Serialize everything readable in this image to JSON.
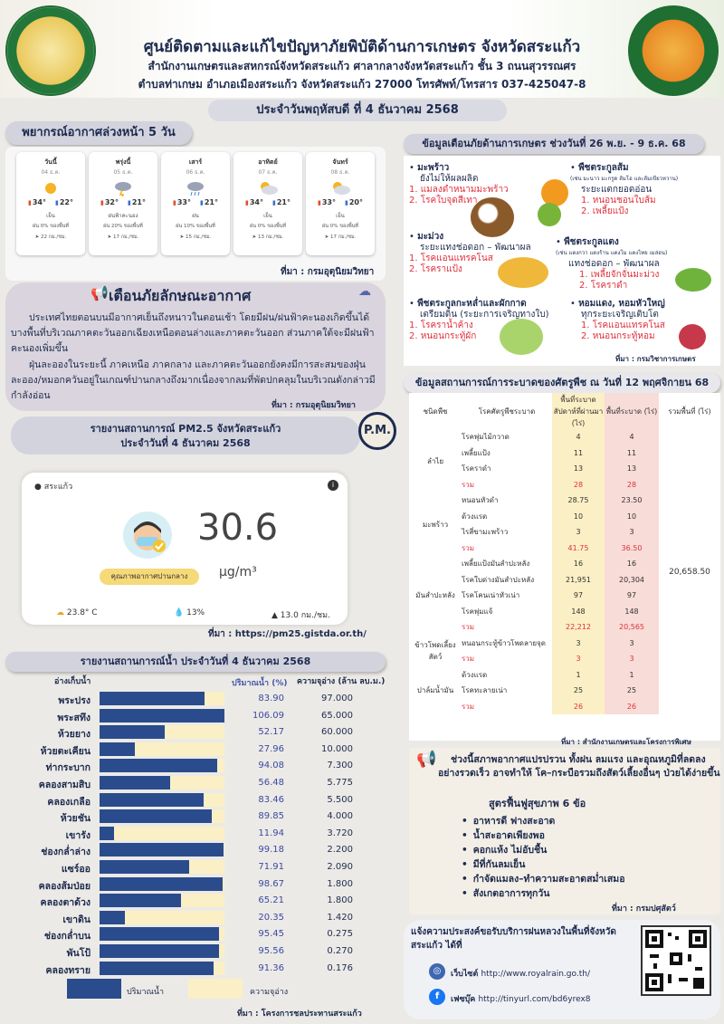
{
  "header": {
    "title": "ศูนย์ติดตามและแก้ไขปัญหาภัยพิบัติด้านการเกษตร จังหวัดสระแก้ว",
    "line2": "สำนักงานเกษตรและสหกรณ์จังหวัดสระแก้ว ศาลากลางจังหวัดสระแก้ว ชั้น 3 ถนนสุวรรณศร",
    "line3": "ตำบลท่าเกษม อำเภอเมืองสระแก้ว จังหวัดสระแก้ว 27000 โทรศัพท์/โทรสาร 037-425047-8",
    "date": "ประจำวันพฤหัสบดี ที่ 4 ธันวาคม 2568"
  },
  "forecast": {
    "title": "พยากรณ์อากาศล่วงหน้า 5 วัน",
    "source": "ที่มา : กรมอุตุนิยมวิทยา",
    "days": [
      {
        "day": "วันนี้",
        "date": "04 ธ.ค.",
        "icon": "sun-icon",
        "hi": "34°",
        "lo": "22°",
        "desc": "เย็น",
        "rain": "ฝน 0% ของพื้นที่",
        "wind": "22 กม./ชม."
      },
      {
        "day": "พรุ่งนี้",
        "date": "05 ธ.ค.",
        "icon": "thunderstorm-icon",
        "hi": "32°",
        "lo": "21°",
        "desc": "ฝนฟ้าคะนอง",
        "rain": "ฝน 20% ของพื้นที่",
        "wind": "17 กม./ชม."
      },
      {
        "day": "เสาร์",
        "date": "06 ธ.ค.",
        "icon": "rain-icon",
        "hi": "33°",
        "lo": "21°",
        "desc": "ฝน",
        "rain": "ฝน 10% ของพื้นที่",
        "wind": "15 กม./ชม."
      },
      {
        "day": "อาทิตย์",
        "date": "07 ธ.ค.",
        "icon": "partly-cloudy-icon",
        "hi": "34°",
        "lo": "21°",
        "desc": "เย็น",
        "rain": "ฝน 0% ของพื้นที่",
        "wind": "13 กม./ชม."
      },
      {
        "day": "จันทร์",
        "date": "08 ธ.ค.",
        "icon": "partly-cloudy-icon",
        "hi": "33°",
        "lo": "20°",
        "desc": "เย็น",
        "rain": "ฝน 0% ของพื้นที่",
        "wind": "17 กม./ชม."
      }
    ]
  },
  "warning": {
    "title": "เตือนภัยลักษณะอากาศ",
    "p1": "ประเทศไทยตอนบนมีอากาศเย็นถึงหนาวในตอนเช้า โดยมีฝน/ฝนฟ้าคะนองเกิดขึ้นได้บางพื้นที่บริเวณภาคตะวันออกเฉียงเหนือตอนล่างและภาคตะวันออก ส่วนภาคใต้จะมีฝนฟ้าคะนองเพิ่มขึ้น",
    "p2": "ฝุ่นละอองในระยะนี้ ภาคเหนือ ภาคกลาง และภาคตะวันออกยังคงมีการสะสมของฝุ่นละออง/หมอกควันอยู่ในเกณฑ์ปานกลางถึงมากเนื่องจากลมที่พัดปกคลุมในบริเวณดังกล่าวมีกำลังอ่อน",
    "source": "ที่มา : กรมอุตุนิยมวิทยา"
  },
  "pm": {
    "title1": "รายงานสถานการณ์ PM2.5 จังหวัดสระแก้ว",
    "title2": "ประจำวันที่ 4 ธันวาคม 2568",
    "badge": "P.M.",
    "location": "สระแก้ว",
    "value": "30.6",
    "unit": "µg/m³",
    "quality": "คุณภาพอากาศปานกลาง",
    "temp": "23.8° C",
    "humidity": "13%",
    "wind": "13.0 กม./ชม.",
    "source": "ที่มา : https://pm25.gistda.or.th/"
  },
  "water": {
    "title": "รายงานสถานการณ์น้ำ ประจำวันที่ 4 ธันวาคม 2568",
    "col_name": "อ่างเก็บน้ำ",
    "col_pct": "ปริมาณน้ำ (%)",
    "col_cap": "ความจุอ่าง (ล้าน ลบ.ม.)",
    "legend_water": "ปริมาณน้ำ",
    "legend_cap": "ความจุอ่าง",
    "source": "ที่มา : โครงการชลประทานสระแก้ว",
    "colors": {
      "water": "#2a4c8c",
      "capacity": "#fbefc5"
    },
    "rows": [
      {
        "name": "พระปรง",
        "pct": "83.90",
        "cap": "97.000",
        "v": 83.9
      },
      {
        "name": "พระสทึง",
        "pct": "106.09",
        "cap": "65.000",
        "v": 106.09
      },
      {
        "name": "ห้วยยาง",
        "pct": "52.17",
        "cap": "60.000",
        "v": 52.17
      },
      {
        "name": "ห้วยตะเคียน",
        "pct": "27.96",
        "cap": "10.000",
        "v": 27.96
      },
      {
        "name": "ท่ากระบาก",
        "pct": "94.08",
        "cap": "7.300",
        "v": 94.08
      },
      {
        "name": "คลองสามสิบ",
        "pct": "56.48",
        "cap": "5.775",
        "v": 56.48
      },
      {
        "name": "คลองเกลือ",
        "pct": "83.46",
        "cap": "5.500",
        "v": 83.46
      },
      {
        "name": "ห้วยชัน",
        "pct": "89.85",
        "cap": "4.000",
        "v": 89.85
      },
      {
        "name": "เขารัง",
        "pct": "11.94",
        "cap": "3.720",
        "v": 11.94
      },
      {
        "name": "ช่องกล่ำล่าง",
        "pct": "99.18",
        "cap": "2.200",
        "v": 99.18
      },
      {
        "name": "แซร์ออ",
        "pct": "71.91",
        "cap": "2.090",
        "v": 71.91
      },
      {
        "name": "คลองส้มป่อย",
        "pct": "98.67",
        "cap": "1.800",
        "v": 98.67
      },
      {
        "name": "คลองตาด้วง",
        "pct": "65.21",
        "cap": "1.800",
        "v": 65.21
      },
      {
        "name": "เขาดิน",
        "pct": "20.35",
        "cap": "1.420",
        "v": 20.35
      },
      {
        "name": "ช่องกล่ำบน",
        "pct": "95.45",
        "cap": "0.275",
        "v": 95.45
      },
      {
        "name": "พันโป้",
        "pct": "95.56",
        "cap": "0.270",
        "v": 95.56
      },
      {
        "name": "คลองทราย",
        "pct": "91.36",
        "cap": "0.176",
        "v": 91.36
      }
    ]
  },
  "alert": {
    "title": "ข้อมูลเตือนภัยด้านการเกษตร ช่วงวันที่ 26 พ.ย. - 9 ธ.ค. 68",
    "source": "ที่มา : กรมวิชาการเกษตร",
    "items": {
      "coconut": {
        "crop": "มะพร้าว",
        "stage": "ยังไม่ให้ผลผลิต",
        "r1": "1. แมลงดำหนามมะพร้าว",
        "r2": "2. โรคใบจุดสีเทา"
      },
      "citrus": {
        "crop": "พืชตระกูลส้ม",
        "note": "(เช่น มะนาว มะกรูด ส้มโอ และส้มเขียวหวาน)",
        "stage": "ระยะแตกยอดอ่อน",
        "r1": "1. หนอนชอนใบส้ม",
        "r2": "2. เพลี้ยแป้ง"
      },
      "mango": {
        "crop": "มะม่วง",
        "stage": "ระยะแทงช่อดอก – พัฒนาผล",
        "r1": "1. โรคแอนแทรคโนส",
        "r2": "2. โรคราแป้ง"
      },
      "cucurbit": {
        "crop": "พืชตระกูลแตง",
        "note": "(เช่น แตงกวา แตงร้าน แตงโม แตงไทย เมล่อน)",
        "stage": "แทงช่อดอก – พัฒนาผล",
        "r1": "1. เพลี้ยจักจั่นมะม่วง",
        "r2": "2. โรคราดำ"
      },
      "cabbage": {
        "crop": "พืชตระกูลกะหล่ำและผักกาด",
        "stage": "เตรียมดิน (ระยะการเจริญทางใบ)",
        "r1": "1. โรคราน้ำค้าง",
        "r2": "2. หนอนกระทู้ผัก"
      },
      "onion": {
        "crop": "หอมแดง, หอมหัวใหญ่",
        "stage": "ทุกระยะเจริญเติบโต",
        "r1": "1. โรคแอนแทรคโนส",
        "r2": "2. หนอนกระทู้หอม"
      }
    }
  },
  "pest": {
    "title": "ข้อมูลสถานการณ์การระบาดของศัตรูพืช ณ วันที่ 12 พฤศจิกายน 68",
    "h_crop": "ชนิดพืช",
    "h_pest": "โรคศัตรูพืชระบาด",
    "h_area_total": "พื้นที่ระบาดสัปดาห์ที่ผ่านมา (ไร่)",
    "h_area": "พื้นที่ระบาด (ไร่)",
    "h_total": "รวมพื้นที่ (ไร่)",
    "grand_total": "20,658.50",
    "source": "ที่มา : สำนักงานเกษตรและโครงการพิเศษ",
    "groups": [
      {
        "crop": "ลำไย",
        "rows": [
          [
            "โรคพุ่มไม้กวาด",
            "4",
            "4"
          ],
          [
            "เพลี้ยแป้ง",
            "11",
            "11"
          ],
          [
            "โรคราดำ",
            "13",
            "13"
          ],
          [
            "รวม",
            "28",
            "28"
          ]
        ]
      },
      {
        "crop": "มะพร้าว",
        "rows": [
          [
            "หนอนหัวดำ",
            "28.75",
            "23.50"
          ],
          [
            "ด้วงแรด",
            "10",
            "10"
          ],
          [
            "ไรสี่ขามะพร้าว",
            "3",
            "3"
          ],
          [
            "รวม",
            "41.75",
            "36.50"
          ]
        ]
      },
      {
        "crop": "มันสำปะหลัง",
        "rows": [
          [
            "เพลี้ยแป้งมันสำปะหลัง",
            "16",
            "16"
          ],
          [
            "โรคใบด่างมันสำปะหลัง",
            "21,951",
            "20,304"
          ],
          [
            "โรคโคนเน่าหัวเน่า",
            "97",
            "97"
          ],
          [
            "โรคพุ่มแจ้",
            "148",
            "148"
          ],
          [
            "รวม",
            "22,212",
            "20,565"
          ]
        ]
      },
      {
        "crop": "ข้าวโพดเลี้ยงสัตว์",
        "rows": [
          [
            "หนอนกระทู้ข้าวโพดลายจุด",
            "3",
            "3"
          ],
          [
            "รวม",
            "3",
            "3"
          ]
        ]
      },
      {
        "crop": "ปาล์มน้ำมัน",
        "rows": [
          [
            "ด้วงแรด",
            "1",
            "1"
          ],
          [
            "โรคทะลายเน่า",
            "25",
            "25"
          ],
          [
            "รวม",
            "26",
            "26"
          ]
        ]
      }
    ]
  },
  "risk": {
    "text": "ช่วงนี้สภาพอากาศแปรปรวน ทั้งฝน ลมแรง และอุณหภูมิที่ลดลงอย่างรวดเร็ว อาจทำให้ โค–กระบือรวมถึงสัตว์เลี้ยงอื่นๆ ป่วยได้ง่ายขึ้น",
    "subtitle": "สูตรฟื้นฟูสุขภาพ 6 ข้อ",
    "items": [
      "อาหารดี ฟางสะอาด",
      "น้ำสะอาดเพียงพอ",
      "คอกแห้ง ไม่อับชื้น",
      "มีที่กันลมเย็น",
      "กำจัดแมลง–ทำความสะอาดสม่ำเสมอ",
      "สังเกตอาการทุกวัน"
    ],
    "source": "ที่มา : กรมปศุสัตว์"
  },
  "rain": {
    "text": "แจ้งความประสงค์ขอรับบริการฝนหลวงในพื้นที่จังหวัดสระแก้ว ได้ที่",
    "web_label": "เว็บไซต์",
    "web": "http://www.royalrain.go.th/",
    "fb_label": "เฟซบุ๊ค",
    "fb": "http://tinyurl.com/bd6yrex8"
  }
}
